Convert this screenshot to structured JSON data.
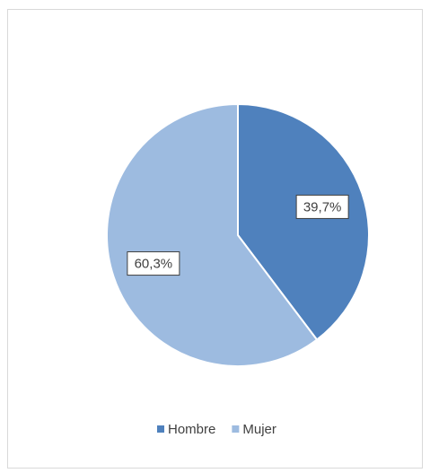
{
  "chart_data": {
    "type": "pie",
    "categories": [
      "Hombre",
      "Mujer"
    ],
    "values": [
      39.7,
      60.3
    ],
    "value_labels": [
      "39,7%",
      "60,3%"
    ],
    "colors": [
      "#4f81bd",
      "#9dbbe0"
    ],
    "legend": "bottom"
  }
}
